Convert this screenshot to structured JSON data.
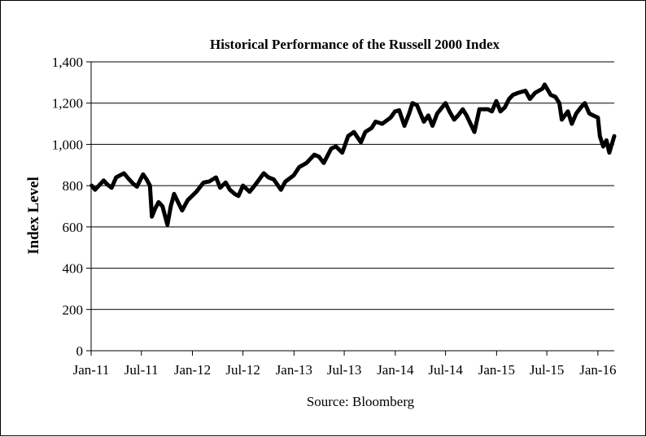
{
  "chart_data": {
    "type": "line",
    "title": "Historical Performance of the Russell 2000 Index",
    "ylabel": "Index Level",
    "xlabel": "",
    "source": "Source: Bloomberg",
    "ylim": [
      0,
      1400
    ],
    "yticks": [
      0,
      200,
      400,
      600,
      800,
      1000,
      1200,
      1400
    ],
    "ytick_labels": [
      "0",
      "200",
      "400",
      "600",
      "800",
      "1,000",
      "1,200",
      "1,400"
    ],
    "xlim": [
      "2011-01",
      "2016-02"
    ],
    "xticks": [
      "2011-01",
      "2011-07",
      "2012-01",
      "2012-07",
      "2013-01",
      "2013-07",
      "2014-01",
      "2014-07",
      "2015-01",
      "2015-07",
      "2016-01"
    ],
    "xtick_labels": [
      "Jan-11",
      "Jul-11",
      "Jan-12",
      "Jul-12",
      "Jan-13",
      "Jul-13",
      "Jan-14",
      "Jul-14",
      "Jan-15",
      "Jul-15",
      "Jan-16"
    ],
    "grid": "horizontal",
    "line_color": "#000000",
    "series": [
      {
        "points": [
          [
            "2011-01-03",
            800
          ],
          [
            "2011-01-15",
            780
          ],
          [
            "2011-02-01",
            805
          ],
          [
            "2011-02-15",
            825
          ],
          [
            "2011-03-01",
            805
          ],
          [
            "2011-03-16",
            790
          ],
          [
            "2011-04-01",
            840
          ],
          [
            "2011-04-29",
            860
          ],
          [
            "2011-05-15",
            835
          ],
          [
            "2011-06-01",
            810
          ],
          [
            "2011-06-15",
            795
          ],
          [
            "2011-07-07",
            855
          ],
          [
            "2011-07-20",
            830
          ],
          [
            "2011-08-01",
            800
          ],
          [
            "2011-08-08",
            650
          ],
          [
            "2011-08-20",
            690
          ],
          [
            "2011-09-01",
            720
          ],
          [
            "2011-09-15",
            700
          ],
          [
            "2011-10-03",
            610
          ],
          [
            "2011-10-15",
            700
          ],
          [
            "2011-10-27",
            760
          ],
          [
            "2011-11-10",
            720
          ],
          [
            "2011-11-25",
            680
          ],
          [
            "2011-12-15",
            730
          ],
          [
            "2012-01-15",
            770
          ],
          [
            "2012-02-10",
            815
          ],
          [
            "2012-03-01",
            820
          ],
          [
            "2012-03-26",
            840
          ],
          [
            "2012-04-10",
            790
          ],
          [
            "2012-04-30",
            815
          ],
          [
            "2012-05-15",
            780
          ],
          [
            "2012-06-01",
            760
          ],
          [
            "2012-06-15",
            750
          ],
          [
            "2012-07-01",
            800
          ],
          [
            "2012-07-25",
            770
          ],
          [
            "2012-08-15",
            805
          ],
          [
            "2012-09-14",
            860
          ],
          [
            "2012-10-01",
            840
          ],
          [
            "2012-10-20",
            830
          ],
          [
            "2012-11-15",
            780
          ],
          [
            "2012-12-01",
            820
          ],
          [
            "2012-12-31",
            850
          ],
          [
            "2013-01-20",
            890
          ],
          [
            "2013-02-15",
            910
          ],
          [
            "2013-03-15",
            950
          ],
          [
            "2013-04-01",
            940
          ],
          [
            "2013-04-18",
            910
          ],
          [
            "2013-05-15",
            980
          ],
          [
            "2013-06-01",
            990
          ],
          [
            "2013-06-24",
            960
          ],
          [
            "2013-07-15",
            1040
          ],
          [
            "2013-08-05",
            1060
          ],
          [
            "2013-08-30",
            1010
          ],
          [
            "2013-09-15",
            1060
          ],
          [
            "2013-10-08",
            1080
          ],
          [
            "2013-10-22",
            1110
          ],
          [
            "2013-11-15",
            1100
          ],
          [
            "2013-12-15",
            1130
          ],
          [
            "2013-12-31",
            1160
          ],
          [
            "2014-01-15",
            1165
          ],
          [
            "2014-02-03",
            1090
          ],
          [
            "2014-02-20",
            1150
          ],
          [
            "2014-03-04",
            1200
          ],
          [
            "2014-03-20",
            1190
          ],
          [
            "2014-04-14",
            1110
          ],
          [
            "2014-04-30",
            1140
          ],
          [
            "2014-05-15",
            1090
          ],
          [
            "2014-06-01",
            1150
          ],
          [
            "2014-07-01",
            1200
          ],
          [
            "2014-07-15",
            1160
          ],
          [
            "2014-08-01",
            1120
          ],
          [
            "2014-08-15",
            1140
          ],
          [
            "2014-09-01",
            1170
          ],
          [
            "2014-09-15",
            1140
          ],
          [
            "2014-10-13",
            1060
          ],
          [
            "2014-10-31",
            1170
          ],
          [
            "2014-11-15",
            1170
          ],
          [
            "2014-12-01",
            1170
          ],
          [
            "2014-12-15",
            1160
          ],
          [
            "2014-12-31",
            1210
          ],
          [
            "2015-01-15",
            1160
          ],
          [
            "2015-01-31",
            1180
          ],
          [
            "2015-02-15",
            1220
          ],
          [
            "2015-03-01",
            1240
          ],
          [
            "2015-03-20",
            1250
          ],
          [
            "2015-04-15",
            1260
          ],
          [
            "2015-05-01",
            1220
          ],
          [
            "2015-05-20",
            1250
          ],
          [
            "2015-06-15",
            1270
          ],
          [
            "2015-06-23",
            1290
          ],
          [
            "2015-07-15",
            1240
          ],
          [
            "2015-08-01",
            1230
          ],
          [
            "2015-08-15",
            1200
          ],
          [
            "2015-08-24",
            1120
          ],
          [
            "2015-09-15",
            1160
          ],
          [
            "2015-09-29",
            1100
          ],
          [
            "2015-10-15",
            1150
          ],
          [
            "2015-11-01",
            1180
          ],
          [
            "2015-11-15",
            1200
          ],
          [
            "2015-12-01",
            1150
          ],
          [
            "2015-12-15",
            1140
          ],
          [
            "2016-01-01",
            1130
          ],
          [
            "2016-01-08",
            1040
          ],
          [
            "2016-01-20",
            990
          ],
          [
            "2016-02-01",
            1020
          ],
          [
            "2016-02-11",
            960
          ],
          [
            "2016-02-20",
            1000
          ],
          [
            "2016-02-29",
            1040
          ]
        ]
      }
    ]
  }
}
